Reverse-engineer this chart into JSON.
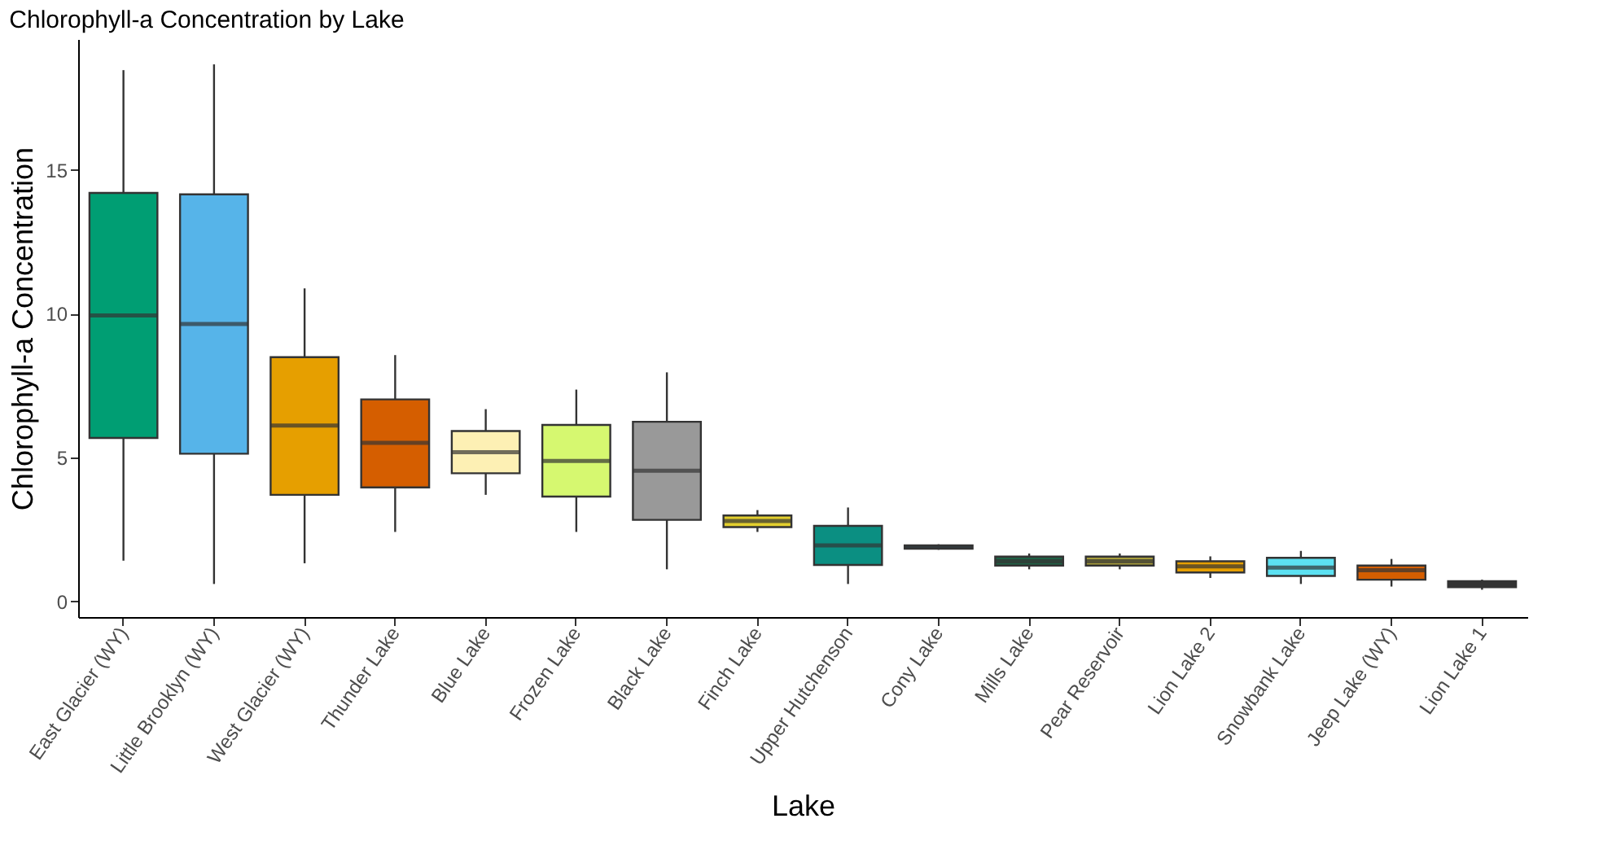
{
  "chart_data": {
    "type": "box",
    "title": "Chlorophyll-a Concentration by Lake",
    "xlabel": "Lake",
    "ylabel": "Chlorophyll-a Concentration",
    "categories": [
      "East Glacier (WY)",
      "Little Brooklyn (WY)",
      "West Glacier (WY)",
      "Thunder Lake",
      "Blue Lake",
      "Frozen Lake",
      "Black Lake",
      "Finch Lake",
      "Upper Hutchenson",
      "Cony Lake",
      "Mills Lake",
      "Pear Reservoir",
      "Lion Lake 2",
      "Snowbank Lake",
      "Jeep Lake (WY)",
      "Lion Lake 1"
    ],
    "colors": [
      "#009e73",
      "#56b4e9",
      "#e69f00",
      "#d55e00",
      "#fdf0b4",
      "#d6f870",
      "#999999",
      "#e3cf2e",
      "#0b8f82",
      "#2f4f5f",
      "#1e6145",
      "#a69c3a",
      "#e69f00",
      "#5ce1f2",
      "#d55e00",
      "#333333"
    ],
    "boxes": [
      {
        "low": 1.41,
        "q1": 5.68,
        "median": 9.94,
        "q3": 14.2,
        "high": 18.47
      },
      {
        "low": 0.6,
        "q1": 5.13,
        "median": 9.64,
        "q3": 14.15,
        "high": 18.67
      },
      {
        "low": 1.32,
        "q1": 3.7,
        "median": 6.11,
        "q3": 8.49,
        "high": 10.88
      },
      {
        "low": 2.41,
        "q1": 3.96,
        "median": 5.51,
        "q3": 7.02,
        "high": 8.56
      },
      {
        "low": 3.7,
        "q1": 4.45,
        "median": 5.18,
        "q3": 5.92,
        "high": 6.68
      },
      {
        "low": 2.41,
        "q1": 3.64,
        "median": 4.88,
        "q3": 6.13,
        "high": 7.36
      },
      {
        "low": 1.11,
        "q1": 2.83,
        "median": 4.54,
        "q3": 6.24,
        "high": 7.96
      },
      {
        "low": 2.41,
        "q1": 2.58,
        "median": 2.79,
        "q3": 2.98,
        "high": 3.17
      },
      {
        "low": 0.6,
        "q1": 1.26,
        "median": 1.94,
        "q3": 2.62,
        "high": 3.26
      },
      {
        "low": 1.79,
        "q1": 1.83,
        "median": 1.88,
        "q3": 1.94,
        "high": 1.98
      },
      {
        "low": 1.11,
        "q1": 1.24,
        "median": 1.39,
        "q3": 1.55,
        "high": 1.66
      },
      {
        "low": 1.11,
        "q1": 1.24,
        "median": 1.39,
        "q3": 1.55,
        "high": 1.66
      },
      {
        "low": 0.81,
        "q1": 1.0,
        "median": 1.21,
        "q3": 1.39,
        "high": 1.56
      },
      {
        "low": 0.6,
        "q1": 0.88,
        "median": 1.17,
        "q3": 1.51,
        "high": 1.75
      },
      {
        "low": 0.51,
        "q1": 0.75,
        "median": 1.08,
        "q3": 1.24,
        "high": 1.47
      },
      {
        "low": 0.4,
        "q1": 0.49,
        "median": 0.6,
        "q3": 0.7,
        "high": 0.75
      }
    ],
    "ylim": [
      -0.55,
      19.55
    ],
    "yticks": [
      0,
      5,
      10,
      15
    ],
    "grid": false
  }
}
